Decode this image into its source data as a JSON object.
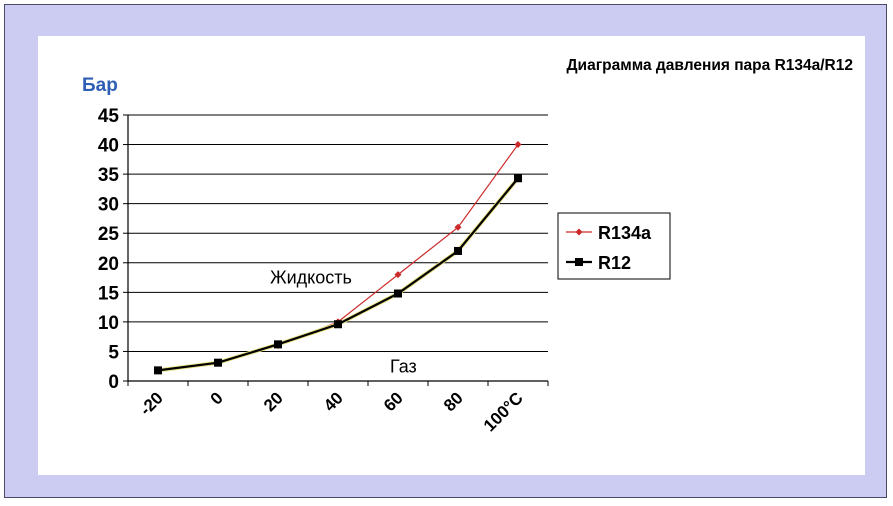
{
  "chart_data": {
    "type": "line",
    "title": "Диаграмма давления пара R134a/R12",
    "ylabel": "Бар",
    "xlabel": "",
    "x_tick_labels": [
      "-20",
      "0",
      "20",
      "40",
      "60",
      "80",
      "100°C"
    ],
    "x_tick_values": [
      -20,
      0,
      20,
      40,
      60,
      80,
      100
    ],
    "x": [
      -20,
      0,
      20,
      40,
      60,
      80,
      100
    ],
    "ylim": [
      0,
      45
    ],
    "y_ticks": [
      0,
      5,
      10,
      15,
      20,
      25,
      30,
      35,
      40,
      45
    ],
    "grid": "horizontal",
    "legend_position": "right",
    "series": [
      {
        "name": "R134a",
        "color": "#cc2a2a",
        "marker": "diamond",
        "values": [
          1.8,
          3.0,
          6.0,
          10.0,
          18.0,
          26.0,
          40.0
        ]
      },
      {
        "name": "R12",
        "color": "#000000",
        "marker": "square",
        "values": [
          1.8,
          3.1,
          6.2,
          9.6,
          14.8,
          22.0,
          34.3
        ]
      }
    ],
    "annotations": [
      {
        "text": "Жидкость",
        "x": 30,
        "y": 18
      },
      {
        "text": "Газ",
        "x": 70,
        "y": 3
      }
    ]
  }
}
